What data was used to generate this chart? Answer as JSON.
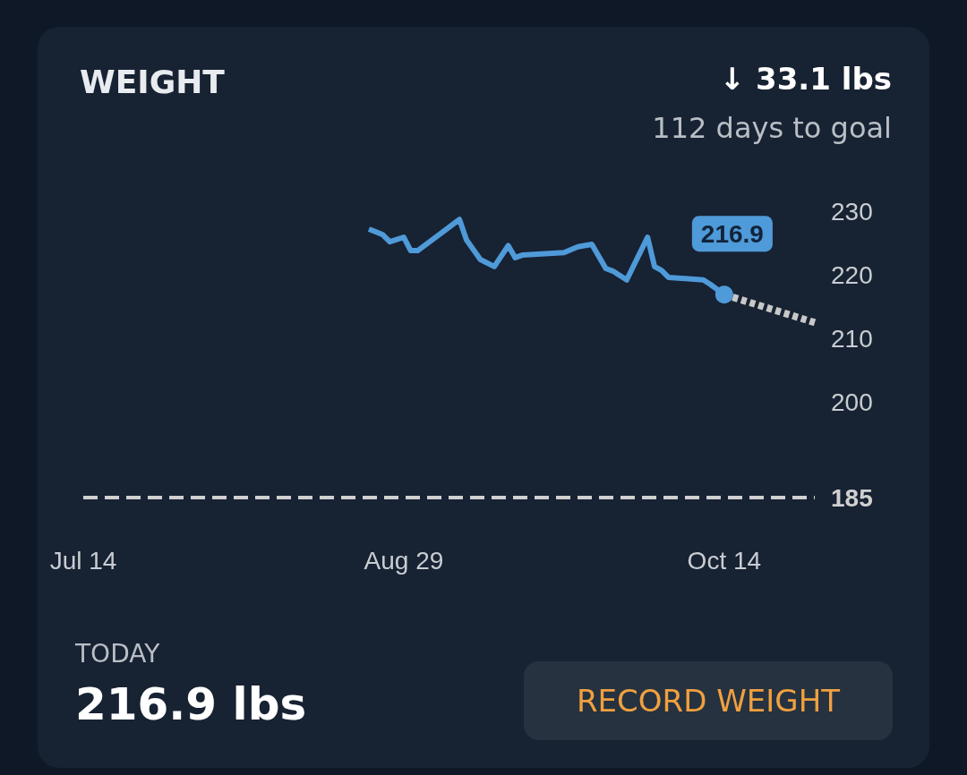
{
  "chart_data": {
    "type": "line",
    "title": "WEIGHT",
    "annotations": [
      "↓ 33.1 lbs",
      "112 days to goal",
      "TODAY",
      "216.9 lbs",
      "RECORD WEIGHT"
    ],
    "series": [
      {
        "color": "#4f9ad8",
        "x": [
          "--08-24",
          "--08-26",
          "--08-27",
          "--08-29",
          "--08-30",
          "--08-31",
          "--09-06",
          "--09-07",
          "--09-09",
          "--09-11",
          "--09-13",
          "--09-14",
          "--09-15",
          "--09-21",
          "--09-23",
          "--09-25",
          "--09-27",
          "--09-28",
          "--09-30",
          "--10-03",
          "--10-04",
          "--10-05",
          "--10-06",
          "--10-11",
          "--10-12",
          "--10-14"
        ],
        "values": [
          227.2,
          226.3,
          225.2,
          225.9,
          223.8,
          223.8,
          228.7,
          225.5,
          222.4,
          221.3,
          224.6,
          222.7,
          223.1,
          223.5,
          224.4,
          224.8,
          221.0,
          220.6,
          219.2,
          225.9,
          221.3,
          220.7,
          219.6,
          219.2,
          218.5,
          216.9
        ],
        "value_labels": [
          null,
          null,
          null,
          null,
          null,
          null,
          null,
          null,
          null,
          null,
          null,
          null,
          null,
          null,
          null,
          null,
          null,
          null,
          null,
          null,
          null,
          null,
          null,
          null,
          null,
          "216.9"
        ]
      },
      {
        "color": "#c8c8c8",
        "line_style": "dotted",
        "x": [
          "--10-14",
          "--10-27"
        ],
        "values": [
          216.9,
          212.5
        ]
      }
    ],
    "xlim": [
      "--07-14",
      "--10-27"
    ],
    "xticks": [
      {
        "value": "--07-14",
        "label": "Jul 14"
      },
      {
        "value": "--08-29",
        "label": "Aug 29"
      },
      {
        "value": "--10-14",
        "label": "Oct 14"
      }
    ],
    "ylim": [
      185,
      230
    ],
    "yticks": [
      200,
      210,
      220,
      230
    ],
    "ref_lines": [
      {
        "axis": "y",
        "value": 185,
        "label": "185",
        "color": "#d0d0d0",
        "line_style": "dashed"
      }
    ],
    "grid": false,
    "marker": "none",
    "line_style": "solid"
  }
}
